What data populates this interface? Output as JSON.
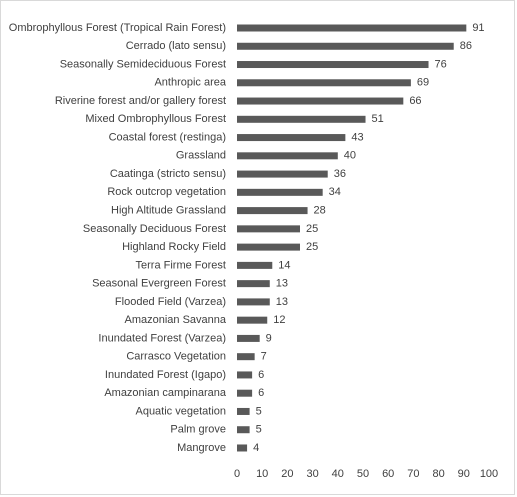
{
  "chart_data": {
    "type": "bar",
    "orientation": "horizontal",
    "title": "",
    "xlabel": "",
    "ylabel": "",
    "xlim": [
      0,
      100
    ],
    "ticks": [
      0,
      10,
      20,
      30,
      40,
      50,
      60,
      70,
      80,
      90,
      100
    ],
    "grid": false,
    "legend": "none",
    "bar_color": "#595959",
    "categories": [
      "Ombrophyllous Forest (Tropical Rain Forest)",
      "Cerrado (lato sensu)",
      "Seasonally Semideciduous Forest",
      "Anthropic area",
      "Riverine forest and/or gallery forest",
      "Mixed Ombrophyllous Forest",
      "Coastal forest (restinga)",
      "Grassland",
      "Caatinga (stricto sensu)",
      "Rock outcrop vegetation",
      "High Altitude Grassland",
      "Seasonally Deciduous Forest",
      "Highland Rocky Field",
      "Terra Firme Forest",
      "Seasonal Evergreen Forest",
      "Flooded Field (Varzea)",
      "Amazonian Savanna",
      "Inundated Forest (Varzea)",
      "Carrasco Vegetation",
      "Inundated Forest (Igapo)",
      "Amazonian campinarana",
      "Aquatic vegetation",
      "Palm grove",
      "Mangrove"
    ],
    "values": [
      91,
      86,
      76,
      69,
      66,
      51,
      43,
      40,
      36,
      34,
      28,
      25,
      25,
      14,
      13,
      13,
      12,
      9,
      7,
      6,
      6,
      5,
      5,
      4
    ]
  }
}
